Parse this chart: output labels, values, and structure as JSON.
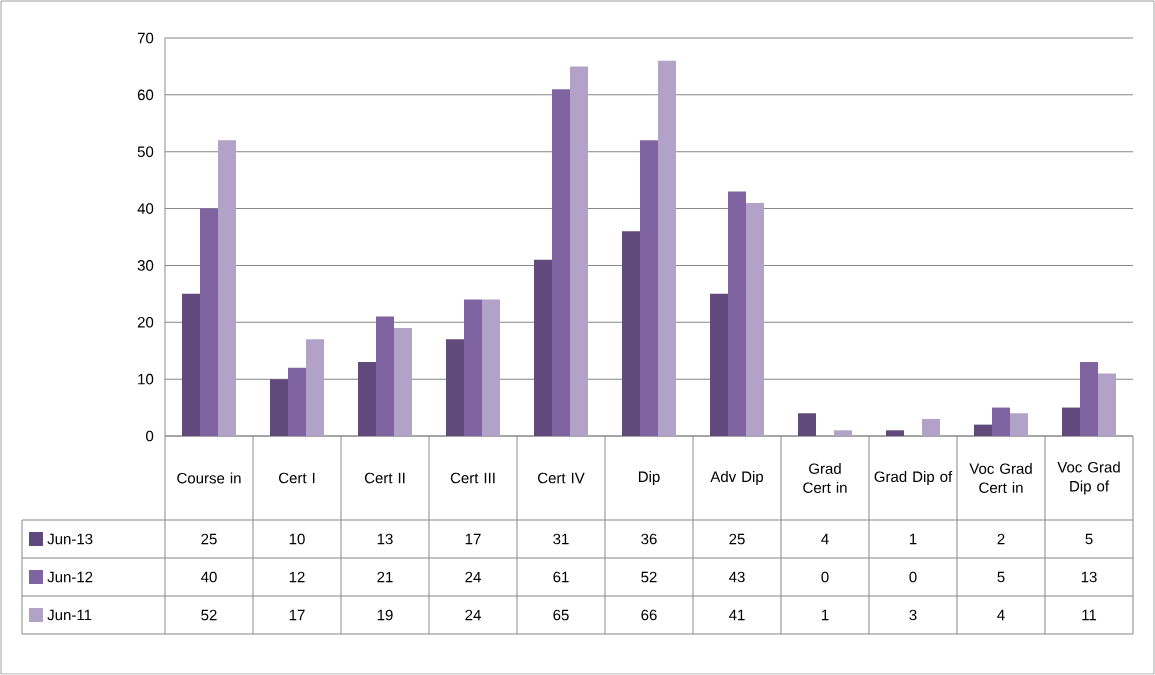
{
  "chart_data": {
    "type": "bar",
    "categories": [
      "Course in",
      "Cert I",
      "Cert II",
      "Cert III",
      "Cert IV",
      "Dip",
      "Adv Dip",
      "Grad Cert in",
      "Grad Dip of",
      "Voc Grad Cert in",
      "Voc Grad Dip of"
    ],
    "series": [
      {
        "name": "Jun-13",
        "color": "#604a7b",
        "values": [
          25,
          10,
          13,
          17,
          31,
          36,
          25,
          4,
          1,
          2,
          5
        ]
      },
      {
        "name": "Jun-12",
        "color": "#8064a2",
        "values": [
          40,
          12,
          21,
          24,
          61,
          52,
          43,
          0,
          0,
          5,
          13
        ]
      },
      {
        "name": "Jun-11",
        "color": "#b3a2c7",
        "values": [
          52,
          17,
          19,
          24,
          65,
          66,
          41,
          1,
          3,
          4,
          11
        ]
      }
    ],
    "ylim": [
      0,
      70
    ],
    "yticks": [
      0,
      10,
      20,
      30,
      40,
      50,
      60,
      70
    ],
    "grid": "y",
    "legend": "bottom",
    "data_labels": true
  }
}
